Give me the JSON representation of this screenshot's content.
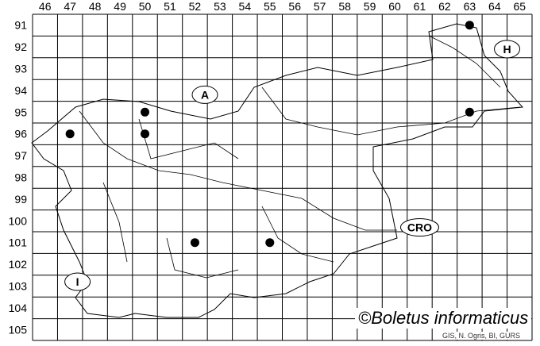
{
  "map": {
    "columns": [
      46,
      47,
      48,
      49,
      50,
      51,
      52,
      53,
      54,
      55,
      56,
      57,
      58,
      59,
      60,
      61,
      62,
      63,
      64,
      65
    ],
    "rows": [
      91,
      92,
      93,
      94,
      95,
      96,
      97,
      98,
      99,
      100,
      101,
      102,
      103,
      104,
      105
    ],
    "region_labels": [
      {
        "text": "A",
        "col": 52.4,
        "row": 94.2
      },
      {
        "text": "H",
        "col": 64.5,
        "row": 92.1
      },
      {
        "text": "CRO",
        "col": 61.0,
        "row": 100.3
      },
      {
        "text": "I",
        "col": 47.3,
        "row": 102.8
      }
    ],
    "occurrences": [
      {
        "col": 63,
        "row": 91
      },
      {
        "col": 50,
        "row": 95
      },
      {
        "col": 47,
        "row": 96
      },
      {
        "col": 50,
        "row": 96
      },
      {
        "col": 63,
        "row": 95
      },
      {
        "col": 52,
        "row": 101
      },
      {
        "col": 55,
        "row": 101
      }
    ],
    "dot_color": "#000000"
  },
  "credits": {
    "copyright": "©Boletus informaticus",
    "source": "GIS, N. Ogris, BI, GURS"
  }
}
